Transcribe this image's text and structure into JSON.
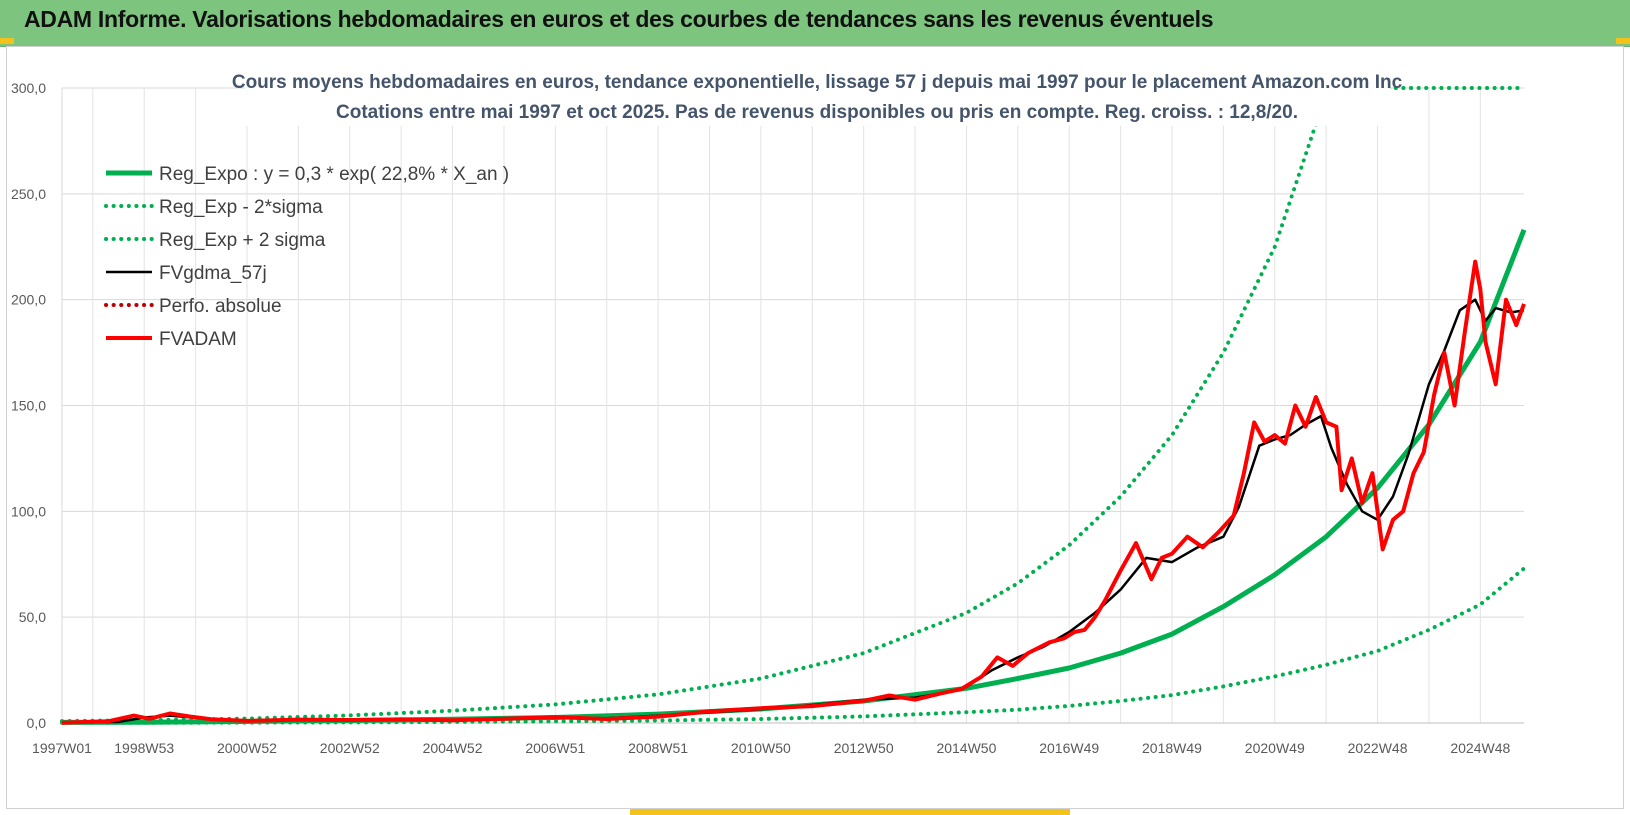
{
  "banner": {
    "title": "ADAM Informe. Valorisations hebdomadaires en euros et des courbes de tendances sans les revenus éventuels"
  },
  "colors": {
    "banner_bg": "#7dc57e",
    "accent_yellow": "#f4c21a",
    "trend_green": "#00b050",
    "series_red": "#ff0000",
    "series_black": "#000000",
    "title_blue_gray": "#44546a"
  },
  "chart_data": {
    "type": "line",
    "title_line1": "Cours moyens hebdomadaires en euros, tendance exponentielle, lissage 57 j depuis mai 1997 pour le placement Amazon.com Inc",
    "title_line2": "Cotations entre mai 1997 et oct 2025. Pas de revenus disponibles ou pris en compte. Reg. croiss. : 12,8/20.",
    "xlabel": "",
    "ylabel": "",
    "ylim": [
      0,
      300
    ],
    "xlim": [
      1997.4,
      2025.85
    ],
    "grid": true,
    "legend_position": "top-left",
    "y_ticks": [
      "0,0",
      "50,0",
      "100,0",
      "150,0",
      "200,0",
      "250,0",
      "300,0"
    ],
    "x_ticks": [
      {
        "label": "1997W01",
        "x": 1997.0
      },
      {
        "label": "1998W53",
        "x": 1999.0
      },
      {
        "label": "2000W52",
        "x": 2001.0
      },
      {
        "label": "2002W52",
        "x": 2003.0
      },
      {
        "label": "2004W52",
        "x": 2005.0
      },
      {
        "label": "2006W51",
        "x": 2007.0
      },
      {
        "label": "2008W51",
        "x": 2009.0
      },
      {
        "label": "2010W50",
        "x": 2011.0
      },
      {
        "label": "2012W50",
        "x": 2013.0
      },
      {
        "label": "2014W50",
        "x": 2015.0
      },
      {
        "label": "2016W49",
        "x": 2017.0
      },
      {
        "label": "2018W49",
        "x": 2019.0
      },
      {
        "label": "2020W49",
        "x": 2021.0
      },
      {
        "label": "2022W48",
        "x": 2023.0
      },
      {
        "label": "2024W48",
        "x": 2025.0
      }
    ],
    "series": [
      {
        "name": "Reg_Expo : y = 0,3 * exp( 22,8% *  X_an )",
        "style": "solid-thick",
        "color": "#00b050",
        "x": [
          1997.4,
          1999,
          2001,
          2003,
          2005,
          2007,
          2009,
          2011,
          2013,
          2015,
          2016,
          2017,
          2018,
          2019,
          2020,
          2021,
          2022,
          2023,
          2024,
          2025,
          2025.85
        ],
        "y": [
          0.3,
          0.4,
          0.7,
          1.2,
          1.8,
          2.6,
          4.2,
          6.6,
          10.4,
          16.4,
          21,
          26,
          33,
          42,
          55,
          70,
          88,
          111,
          141,
          180,
          233
        ]
      },
      {
        "name": "Reg_Exp - 2*sigma",
        "style": "dotted",
        "color": "#00b050",
        "x": [
          1997.4,
          1999,
          2001,
          2003,
          2005,
          2007,
          2009,
          2011,
          2013,
          2015,
          2016,
          2017,
          2018,
          2019,
          2020,
          2021,
          2022,
          2023,
          2024,
          2025,
          2025.85
        ],
        "y": [
          0.1,
          0.1,
          0.2,
          0.3,
          0.5,
          0.8,
          1.2,
          1.9,
          3.1,
          5.1,
          6.3,
          8.1,
          10.4,
          13.2,
          17.3,
          22,
          27.5,
          34,
          44,
          56,
          73
        ]
      },
      {
        "name": "Reg_Exp + 2 sigma",
        "style": "dotted",
        "color": "#00b050",
        "x": [
          1997.4,
          1999,
          2001,
          2003,
          2005,
          2007,
          2009,
          2011,
          2013,
          2015,
          2016,
          2017,
          2018,
          2019,
          2020,
          2021,
          2021.8
        ],
        "y": [
          0.9,
          1.3,
          2.1,
          3.6,
          5.8,
          8.8,
          13.5,
          21,
          33,
          52,
          66,
          84,
          107,
          136,
          175,
          225,
          283
        ]
      },
      {
        "name": "FVgdma_57j",
        "style": "solid",
        "color": "#000000",
        "x": [
          1997.4,
          1998.5,
          1999.0,
          1999.5,
          2000.0,
          2000.8,
          2002,
          2003,
          2004,
          2005,
          2006,
          2007,
          2008,
          2009,
          2010,
          2011,
          2012,
          2013,
          2014,
          2014.5,
          2015,
          2015.5,
          2016,
          2016.5,
          2017,
          2017.5,
          2018,
          2018.5,
          2019,
          2019.5,
          2020,
          2020.3,
          2020.7,
          2021,
          2021.3,
          2021.6,
          2021.9,
          2022.1,
          2022.4,
          2022.7,
          2023.0,
          2023.3,
          2023.6,
          2024.0,
          2024.3,
          2024.6,
          2024.9,
          2025.1,
          2025.3,
          2025.6,
          2025.85
        ],
        "y": [
          0.1,
          0.5,
          2.6,
          3.5,
          2.5,
          1.2,
          1.5,
          1.6,
          1.5,
          1.5,
          1.8,
          2.5,
          2.2,
          3.5,
          5,
          6.5,
          8.5,
          11,
          12,
          14,
          17,
          25,
          31,
          36,
          43,
          52,
          63,
          78,
          76,
          83,
          88,
          102,
          131,
          134,
          136,
          141,
          145,
          130,
          113,
          100,
          96,
          107,
          127,
          160,
          176,
          195,
          200,
          190,
          196,
          194,
          195
        ]
      },
      {
        "name": "Perfo. absolue",
        "style": "dotted",
        "color": "#c00000",
        "x": [],
        "y": []
      },
      {
        "name": "FVADAM",
        "style": "solid-thick",
        "color": "#ff0000",
        "x": [
          1997.4,
          1998.3,
          1998.8,
          1999.1,
          1999.5,
          1999.9,
          2000.3,
          2001.0,
          2002,
          2003,
          2004,
          2005,
          2006,
          2007,
          2008,
          2009,
          2010,
          2011,
          2012,
          2013,
          2013.5,
          2014,
          2014.5,
          2014.9,
          2015.3,
          2015.6,
          2015.9,
          2016.2,
          2016.6,
          2016.9,
          2017.1,
          2017.3,
          2017.5,
          2017.7,
          2018.0,
          2018.3,
          2018.6,
          2018.8,
          2019.0,
          2019.3,
          2019.6,
          2019.9,
          2020.2,
          2020.4,
          2020.6,
          2020.8,
          2021.0,
          2021.2,
          2021.4,
          2021.6,
          2021.8,
          2022.0,
          2022.2,
          2022.3,
          2022.5,
          2022.7,
          2022.9,
          2023.1,
          2023.3,
          2023.5,
          2023.7,
          2023.9,
          2024.1,
          2024.3,
          2024.5,
          2024.7,
          2024.9,
          2025.0,
          2025.1,
          2025.3,
          2025.5,
          2025.7,
          2025.85
        ],
        "y": [
          0.1,
          0.8,
          3.5,
          2.0,
          4.5,
          3.0,
          1.8,
          1.0,
          1.6,
          1.4,
          1.7,
          1.3,
          2.0,
          2.8,
          1.9,
          3.0,
          5.5,
          7.0,
          8.0,
          10.5,
          13.0,
          11.0,
          14.0,
          16.0,
          22.0,
          31.0,
          27.0,
          33.0,
          38.0,
          40.0,
          43.0,
          44.0,
          50.0,
          58.0,
          72.0,
          85.0,
          68.0,
          78.0,
          80.0,
          88.0,
          83.0,
          90.0,
          98.0,
          118.0,
          142.0,
          133.0,
          136.0,
          132.0,
          150.0,
          140.0,
          154.0,
          142.0,
          140.0,
          110.0,
          125.0,
          104.0,
          118.0,
          82.0,
          96.0,
          100.0,
          118.0,
          128.0,
          155.0,
          175.0,
          150.0,
          185.0,
          218.0,
          205.0,
          180.0,
          160.0,
          200.0,
          188.0,
          198.0
        ]
      }
    ]
  }
}
